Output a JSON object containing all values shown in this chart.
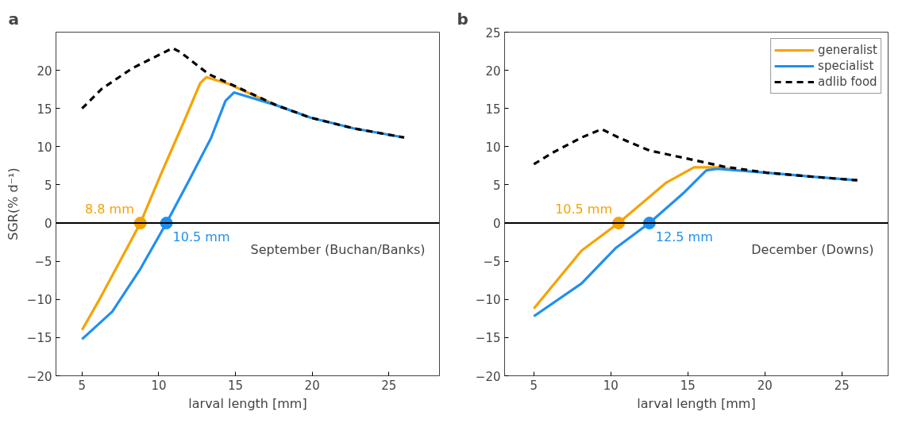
{
  "chart_data": [
    {
      "type": "line",
      "title": "a",
      "xlabel": "larval length [mm]",
      "ylabel": "SGR(% d⁻¹)",
      "xlim": [
        3.3,
        28.3
      ],
      "xticks": [
        5,
        10,
        15,
        20,
        25
      ],
      "ylim": [
        -20,
        25
      ],
      "yticks": [
        -20,
        -15,
        -10,
        -5,
        0,
        5,
        10,
        15,
        20
      ],
      "grid": false,
      "legend": false,
      "ref_lines": [
        {
          "axis": "y",
          "value": 0,
          "color": "#000000"
        }
      ],
      "annotations": [
        "September (Buchan/Banks)",
        {
          "text": "8.8 mm",
          "x": 8.8,
          "y": 0
        },
        {
          "text": "10.5 mm",
          "x": 10.5,
          "y": 0
        }
      ],
      "series": [
        {
          "color": "#f5a300",
          "line_style": "solid",
          "x": [
            5,
            6.05,
            7.9,
            8.8,
            10.1,
            11.6,
            12.7,
            13.1,
            14.6,
            15.65,
            17.7
          ],
          "values": [
            -14.0,
            -10.3,
            -3.4,
            0,
            6.2,
            13.1,
            18.3,
            19.1,
            18.2,
            17.2,
            15.4
          ]
        },
        {
          "color": "#2090f0",
          "line_style": "solid",
          "x": [
            5,
            6.97,
            8.8,
            10.5,
            11.95,
            13.4,
            14.35,
            14.9,
            17.7,
            19.9,
            22.7,
            26
          ],
          "values": [
            -15.2,
            -11.6,
            -6.0,
            0,
            5.5,
            11.1,
            16.0,
            17.1,
            15.4,
            13.8,
            12.4,
            11.2
          ]
        },
        {
          "color": "#000000",
          "line_style": "dashed",
          "x": [
            5,
            6.3,
            8.3,
            10.1,
            10.9,
            11.4,
            13.25,
            14.9,
            17.7,
            19.9,
            22.7,
            26
          ],
          "values": [
            15.0,
            17.6,
            20.3,
            22.1,
            22.9,
            22.4,
            19.5,
            18.0,
            15.4,
            13.8,
            12.4,
            11.2
          ]
        },
        {
          "type": "scatter",
          "marker": "circle",
          "color": "#f5a300",
          "x": [
            8.8
          ],
          "values": [
            0
          ]
        },
        {
          "type": "scatter",
          "marker": "circle",
          "color": "#2090f0",
          "x": [
            10.5
          ],
          "values": [
            0
          ]
        }
      ]
    },
    {
      "type": "line",
      "title": "b",
      "xlabel": "larval length [mm]",
      "xlim": [
        3.1,
        28
      ],
      "xticks": [
        5,
        10,
        15,
        20,
        25
      ],
      "ylim": [
        -20,
        25
      ],
      "yticks": [
        -20,
        -15,
        -10,
        -5,
        0,
        5,
        10,
        15,
        20,
        25
      ],
      "grid": false,
      "legend": "top right",
      "ref_lines": [
        {
          "axis": "y",
          "value": 0,
          "color": "#000000"
        }
      ],
      "annotations": [
        "December (Downs)",
        {
          "text": "10.5 mm",
          "x": 10.5,
          "y": 0
        },
        {
          "text": "12.5 mm",
          "x": 12.5,
          "y": 0
        }
      ],
      "series": [
        {
          "name": "generalist",
          "color": "#f5a300",
          "line_style": "solid",
          "x": [
            5,
            8.1,
            10.5,
            13.6,
            15.4,
            17,
            17.7
          ],
          "values": [
            -11.2,
            -3.6,
            0,
            5.3,
            7.3,
            7.3,
            7.1
          ]
        },
        {
          "name": "specialist",
          "color": "#2090f0",
          "line_style": "solid",
          "x": [
            5,
            8.1,
            10.3,
            12.5,
            14.7,
            16.2,
            16.9,
            20.1,
            22.9,
            26
          ],
          "values": [
            -12.2,
            -7.9,
            -3.3,
            0,
            3.9,
            6.9,
            7.1,
            6.6,
            6.1,
            5.6
          ]
        },
        {
          "name": "adlib food",
          "color": "#000000",
          "line_style": "dashed",
          "x": [
            5,
            6.2,
            8.1,
            9.4,
            10.5,
            12.5,
            15.5,
            17.3,
            20.1,
            22.9,
            26
          ],
          "values": [
            7.7,
            9.2,
            11.2,
            12.3,
            11.2,
            9.5,
            8.2,
            7.4,
            6.6,
            6.1,
            5.6
          ]
        },
        {
          "type": "scatter",
          "marker": "circle",
          "color": "#f5a300",
          "x": [
            10.5
          ],
          "values": [
            0
          ]
        },
        {
          "type": "scatter",
          "marker": "circle",
          "color": "#2090f0",
          "x": [
            12.5
          ],
          "values": [
            0
          ]
        }
      ]
    }
  ]
}
